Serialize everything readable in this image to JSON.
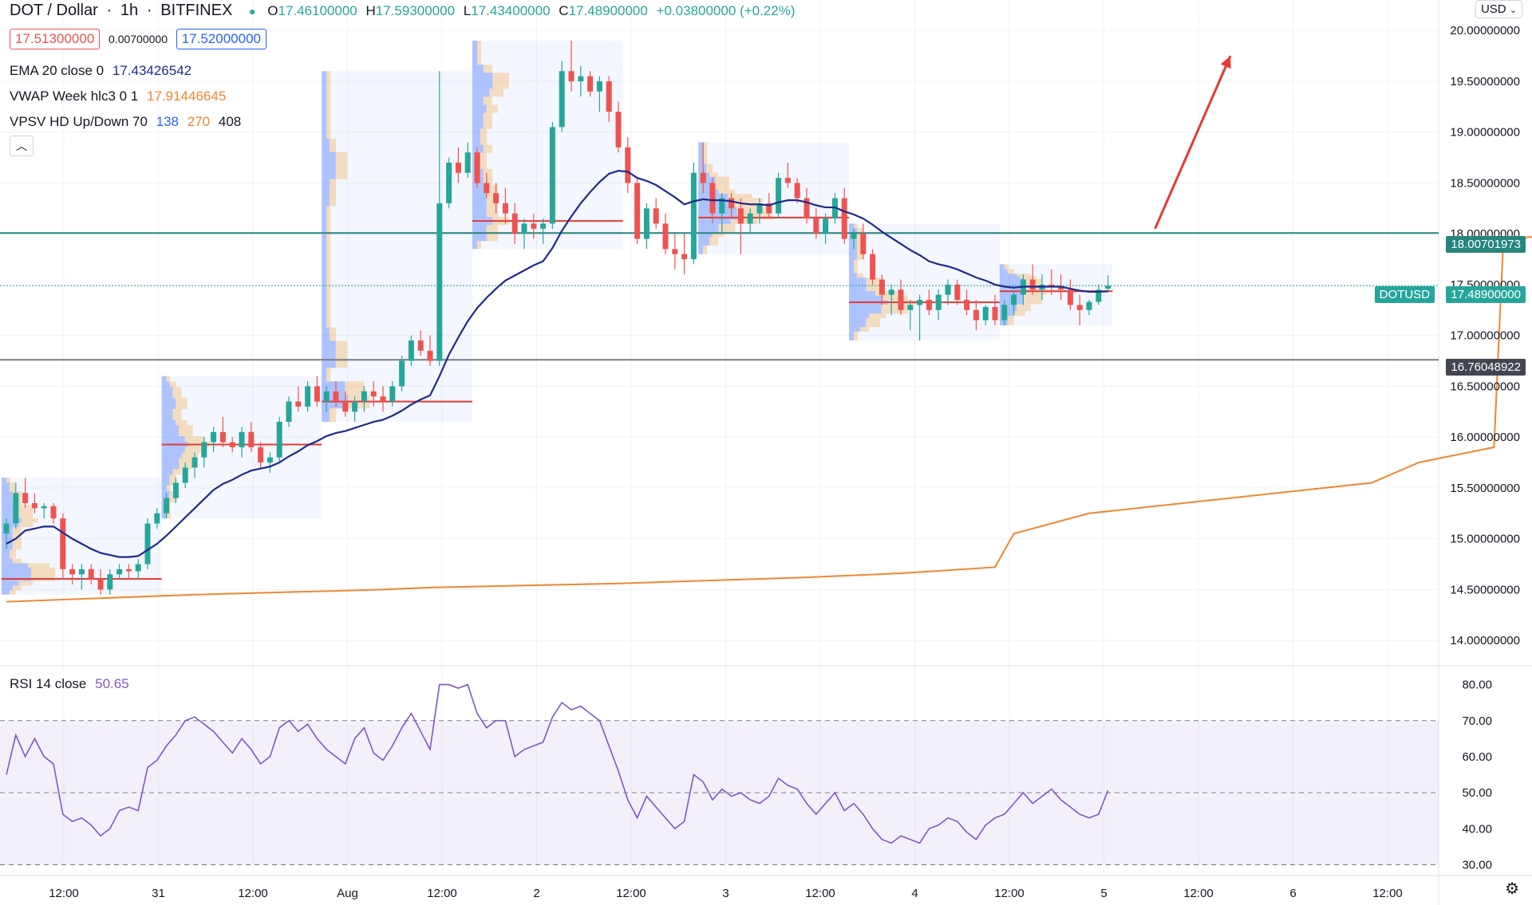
{
  "header": {
    "symbol": "DOT / Dollar",
    "interval": "1h",
    "exchange": "BITFINEX",
    "ohlc": {
      "o_label": "O",
      "o": "17.46100000",
      "h_label": "H",
      "h": "17.59300000",
      "l_label": "L",
      "l": "17.43400000",
      "c_label": "C",
      "c": "17.48900000",
      "change": "+0.03800000 (+0.22%)"
    },
    "bid": "17.51300000",
    "spread": "0.00700000",
    "ask": "17.52000000"
  },
  "indicators": {
    "ema": {
      "label": "EMA 20 close 0",
      "value": "17.43426542",
      "color": "#1e2a8c"
    },
    "vwap": {
      "label": "VWAP Week hlc3 0 1",
      "value": "17.91446645",
      "color": "#f0862f"
    },
    "vpsv": {
      "label": "VPSV HD Up/Down 70",
      "v1": "138",
      "v2": "270",
      "v3": "408"
    },
    "rsi": {
      "label": "RSI 14 close",
      "value": "50.65",
      "color": "#7e57c2"
    }
  },
  "currency_select": "USD",
  "price_tags": {
    "resistance": "18.00701973",
    "last_symbol": "DOTUSD",
    "last": "17.48900000",
    "support": "16.76048922"
  },
  "colors": {
    "up": "#26a69a",
    "down": "#ef5350",
    "hline_teal": "#26857e",
    "hline_gray": "#787b86",
    "arrow": "#e53935"
  },
  "chart_data": {
    "type": "candlestick",
    "symbol": "DOT / Dollar",
    "interval": "1h",
    "ylim": [
      13.75,
      20.3
    ],
    "y_ticks": [
      "14.00000000",
      "14.50000000",
      "15.00000000",
      "15.50000000",
      "16.00000000",
      "16.50000000",
      "17.00000000",
      "17.50000000",
      "18.00000000",
      "18.50000000",
      "19.00000000",
      "19.50000000",
      "20.00000000"
    ],
    "x_ticks": [
      "12:00",
      "31",
      "12:00",
      "Aug",
      "12:00",
      "2",
      "12:00",
      "3",
      "12:00",
      "4",
      "12:00",
      "5",
      "12:00",
      "6",
      "12:00"
    ],
    "horizontal_lines": [
      18.00701973,
      16.76048922
    ],
    "last_price": 17.489,
    "ohlc": [
      [
        15.05,
        15.2,
        14.9,
        15.15
      ],
      [
        15.15,
        15.55,
        15.1,
        15.45
      ],
      [
        15.45,
        15.6,
        15.3,
        15.35
      ],
      [
        15.35,
        15.45,
        15.25,
        15.3
      ],
      [
        15.3,
        15.35,
        15.2,
        15.32
      ],
      [
        15.32,
        15.35,
        15.15,
        15.2
      ],
      [
        15.2,
        15.25,
        14.6,
        14.7
      ],
      [
        14.7,
        14.75,
        14.55,
        14.65
      ],
      [
        14.65,
        14.75,
        14.5,
        14.7
      ],
      [
        14.7,
        14.75,
        14.55,
        14.6
      ],
      [
        14.6,
        14.7,
        14.45,
        14.5
      ],
      [
        14.5,
        14.7,
        14.45,
        14.65
      ],
      [
        14.65,
        14.75,
        14.6,
        14.7
      ],
      [
        14.7,
        14.75,
        14.6,
        14.68
      ],
      [
        14.68,
        14.8,
        14.6,
        14.75
      ],
      [
        14.75,
        15.2,
        14.7,
        15.15
      ],
      [
        15.15,
        15.3,
        15.1,
        15.25
      ],
      [
        15.25,
        15.45,
        15.2,
        15.4
      ],
      [
        15.4,
        15.6,
        15.35,
        15.55
      ],
      [
        15.55,
        15.75,
        15.5,
        15.7
      ],
      [
        15.7,
        15.85,
        15.6,
        15.8
      ],
      [
        15.8,
        16.0,
        15.7,
        15.95
      ],
      [
        15.95,
        16.1,
        15.85,
        16.05
      ],
      [
        16.05,
        16.2,
        15.9,
        15.95
      ],
      [
        15.95,
        16.0,
        15.85,
        15.9
      ],
      [
        15.9,
        16.1,
        15.8,
        16.05
      ],
      [
        16.05,
        16.15,
        15.85,
        15.9
      ],
      [
        15.9,
        15.95,
        15.7,
        15.75
      ],
      [
        15.75,
        15.85,
        15.65,
        15.8
      ],
      [
        15.8,
        16.2,
        15.75,
        16.15
      ],
      [
        16.15,
        16.4,
        16.1,
        16.35
      ],
      [
        16.35,
        16.5,
        16.25,
        16.3
      ],
      [
        16.3,
        16.55,
        16.25,
        16.5
      ],
      [
        16.5,
        16.6,
        16.3,
        16.35
      ],
      [
        16.35,
        16.5,
        16.25,
        16.45
      ],
      [
        16.45,
        16.55,
        16.3,
        16.35
      ],
      [
        16.35,
        16.45,
        16.2,
        16.25
      ],
      [
        16.25,
        16.4,
        16.15,
        16.35
      ],
      [
        16.35,
        16.5,
        16.25,
        16.45
      ],
      [
        16.45,
        16.55,
        16.3,
        16.4
      ],
      [
        16.4,
        16.5,
        16.25,
        16.35
      ],
      [
        16.35,
        16.55,
        16.3,
        16.5
      ],
      [
        16.5,
        16.8,
        16.45,
        16.75
      ],
      [
        16.75,
        17.0,
        16.7,
        16.95
      ],
      [
        16.95,
        17.05,
        16.8,
        16.85
      ],
      [
        16.85,
        17.0,
        16.7,
        16.75
      ],
      [
        16.75,
        19.6,
        16.7,
        18.3
      ],
      [
        18.3,
        18.75,
        18.25,
        18.7
      ],
      [
        18.7,
        18.85,
        18.5,
        18.6
      ],
      [
        18.6,
        18.9,
        18.55,
        18.8
      ],
      [
        18.8,
        18.85,
        18.45,
        18.5
      ],
      [
        18.5,
        18.6,
        18.35,
        18.4
      ],
      [
        18.4,
        18.5,
        18.2,
        18.3
      ],
      [
        18.3,
        18.45,
        18.1,
        18.2
      ],
      [
        18.2,
        18.3,
        17.9,
        18.0
      ],
      [
        18.0,
        18.15,
        17.85,
        18.1
      ],
      [
        18.1,
        18.2,
        17.95,
        18.05
      ],
      [
        18.05,
        18.15,
        17.9,
        18.1
      ],
      [
        18.1,
        19.1,
        18.05,
        19.05
      ],
      [
        19.05,
        19.7,
        19.0,
        19.6
      ],
      [
        19.6,
        19.9,
        19.4,
        19.5
      ],
      [
        19.5,
        19.65,
        19.35,
        19.55
      ],
      [
        19.55,
        19.6,
        19.35,
        19.4
      ],
      [
        19.4,
        19.55,
        19.2,
        19.5
      ],
      [
        19.5,
        19.55,
        19.1,
        19.2
      ],
      [
        19.2,
        19.3,
        18.8,
        18.85
      ],
      [
        18.85,
        18.95,
        18.4,
        18.5
      ],
      [
        18.5,
        18.55,
        17.9,
        17.95
      ],
      [
        17.95,
        18.3,
        17.85,
        18.25
      ],
      [
        18.25,
        18.35,
        18.05,
        18.1
      ],
      [
        18.1,
        18.2,
        17.8,
        17.85
      ],
      [
        17.85,
        18.0,
        17.65,
        17.8
      ],
      [
        17.8,
        18.0,
        17.6,
        17.75
      ],
      [
        17.75,
        18.7,
        17.7,
        18.6
      ],
      [
        18.6,
        18.9,
        18.4,
        18.5
      ],
      [
        18.5,
        18.55,
        18.1,
        18.2
      ],
      [
        18.2,
        18.4,
        18.0,
        18.35
      ],
      [
        18.35,
        18.4,
        18.15,
        18.25
      ],
      [
        18.25,
        18.35,
        17.8,
        18.1
      ],
      [
        18.1,
        18.25,
        18.0,
        18.2
      ],
      [
        18.2,
        18.35,
        18.1,
        18.3
      ],
      [
        18.3,
        18.4,
        18.15,
        18.2
      ],
      [
        18.2,
        18.6,
        18.15,
        18.55
      ],
      [
        18.55,
        18.7,
        18.45,
        18.5
      ],
      [
        18.5,
        18.55,
        18.3,
        18.35
      ],
      [
        18.35,
        18.45,
        18.1,
        18.15
      ],
      [
        18.15,
        18.25,
        17.95,
        18.0
      ],
      [
        18.0,
        18.2,
        17.9,
        18.15
      ],
      [
        18.15,
        18.4,
        18.1,
        18.35
      ],
      [
        18.35,
        18.45,
        17.9,
        17.95
      ],
      [
        17.95,
        18.05,
        17.85,
        18.0
      ],
      [
        18.0,
        18.1,
        17.75,
        17.8
      ],
      [
        17.8,
        17.85,
        17.5,
        17.55
      ],
      [
        17.55,
        17.6,
        17.3,
        17.4
      ],
      [
        17.4,
        17.5,
        17.2,
        17.45
      ],
      [
        17.45,
        17.55,
        17.2,
        17.25
      ],
      [
        17.25,
        17.35,
        17.05,
        17.3
      ],
      [
        17.3,
        17.4,
        16.95,
        17.35
      ],
      [
        17.35,
        17.45,
        17.2,
        17.25
      ],
      [
        17.25,
        17.45,
        17.15,
        17.4
      ],
      [
        17.4,
        17.55,
        17.3,
        17.5
      ],
      [
        17.5,
        17.55,
        17.3,
        17.35
      ],
      [
        17.35,
        17.45,
        17.2,
        17.25
      ],
      [
        17.25,
        17.35,
        17.05,
        17.15
      ],
      [
        17.15,
        17.3,
        17.1,
        17.28
      ],
      [
        17.28,
        17.4,
        17.1,
        17.15
      ],
      [
        17.15,
        17.35,
        17.1,
        17.3
      ],
      [
        17.3,
        17.45,
        17.2,
        17.4
      ],
      [
        17.4,
        17.6,
        17.3,
        17.55
      ],
      [
        17.55,
        17.7,
        17.4,
        17.45
      ],
      [
        17.45,
        17.6,
        17.35,
        17.5
      ],
      [
        17.5,
        17.65,
        17.4,
        17.48
      ],
      [
        17.48,
        17.6,
        17.35,
        17.45
      ],
      [
        17.45,
        17.55,
        17.25,
        17.3
      ],
      [
        17.3,
        17.4,
        17.1,
        17.25
      ],
      [
        17.25,
        17.35,
        17.2,
        17.33
      ],
      [
        17.33,
        17.5,
        17.3,
        17.45
      ],
      [
        17.461,
        17.593,
        17.434,
        17.489
      ]
    ],
    "ema20": [
      14.95,
      15.0,
      15.08,
      15.1,
      15.12,
      15.12,
      15.06,
      15.0,
      14.95,
      14.9,
      14.86,
      14.84,
      14.82,
      14.82,
      14.83,
      14.89,
      14.95,
      15.03,
      15.12,
      15.21,
      15.3,
      15.39,
      15.48,
      15.54,
      15.58,
      15.63,
      15.67,
      15.69,
      15.71,
      15.75,
      15.81,
      15.86,
      15.92,
      15.96,
      16.01,
      16.04,
      16.06,
      16.09,
      16.12,
      16.15,
      16.17,
      16.21,
      16.26,
      16.32,
      16.37,
      16.41,
      16.6,
      16.81,
      16.98,
      17.14,
      17.27,
      17.37,
      17.46,
      17.54,
      17.59,
      17.64,
      17.69,
      17.73,
      17.86,
      18.03,
      18.17,
      18.3,
      18.41,
      18.51,
      18.59,
      18.62,
      18.61,
      18.55,
      18.52,
      18.48,
      18.42,
      18.36,
      18.29,
      18.32,
      18.34,
      18.33,
      18.33,
      18.32,
      18.3,
      18.29,
      18.29,
      18.28,
      18.31,
      18.33,
      18.33,
      18.31,
      18.28,
      18.26,
      18.26,
      18.22,
      18.19,
      18.15,
      18.09,
      18.02,
      17.96,
      17.9,
      17.84,
      17.79,
      17.73,
      17.7,
      17.68,
      17.65,
      17.61,
      17.57,
      17.54,
      17.5,
      17.48,
      17.47,
      17.48,
      17.48,
      17.48,
      17.48,
      17.48,
      17.46,
      17.44,
      17.43,
      17.43,
      17.434
    ],
    "vwap_points": [
      [
        0,
        14.38
      ],
      [
        20,
        14.45
      ],
      [
        40,
        14.5
      ],
      [
        45,
        14.52
      ],
      [
        65,
        14.56
      ],
      [
        85,
        14.62
      ],
      [
        95,
        14.66
      ],
      [
        105,
        14.72
      ],
      [
        107,
        15.05
      ],
      [
        115,
        15.25
      ],
      [
        125,
        15.35
      ],
      [
        135,
        15.45
      ],
      [
        145,
        15.55
      ],
      [
        150,
        15.75
      ],
      [
        158,
        15.9
      ],
      [
        159,
        17.95
      ],
      [
        170,
        18.02
      ],
      [
        190,
        18.02
      ],
      [
        210,
        18.0
      ],
      [
        230,
        18.0
      ],
      [
        246,
        17.96
      ],
      [
        260,
        17.95
      ],
      [
        278,
        17.93
      ],
      [
        295,
        17.91
      ]
    ],
    "rsi": {
      "ylim": [
        27,
        85
      ],
      "y_ticks": [
        "30.00",
        "40.00",
        "50.00",
        "60.00",
        "70.00",
        "80.00"
      ],
      "bands": [
        30,
        70
      ],
      "values": [
        55,
        66,
        60,
        65,
        60,
        58,
        44,
        42,
        43,
        41,
        38,
        40,
        45,
        46,
        45,
        57,
        59,
        63,
        66,
        70,
        71,
        69,
        67,
        64,
        61,
        65,
        62,
        58,
        60,
        68,
        70,
        67,
        69,
        65,
        62,
        60,
        58,
        65,
        68,
        61,
        59,
        63,
        68,
        72,
        67,
        62,
        80,
        80,
        79,
        80,
        72,
        68,
        70,
        70,
        60,
        62,
        63,
        64,
        71,
        75,
        73,
        74,
        72,
        70,
        63,
        56,
        48,
        43,
        49,
        46,
        43,
        40,
        42,
        55,
        53,
        48,
        51,
        49,
        50,
        48,
        47,
        49,
        54,
        52,
        51,
        47,
        44,
        47,
        50,
        45,
        47,
        44,
        40,
        37,
        36,
        38,
        37,
        36,
        40,
        41,
        43,
        42,
        39,
        37,
        41,
        43,
        44,
        47,
        50,
        47,
        49,
        51,
        48,
        46,
        44,
        43,
        44,
        50.65
      ]
    }
  }
}
